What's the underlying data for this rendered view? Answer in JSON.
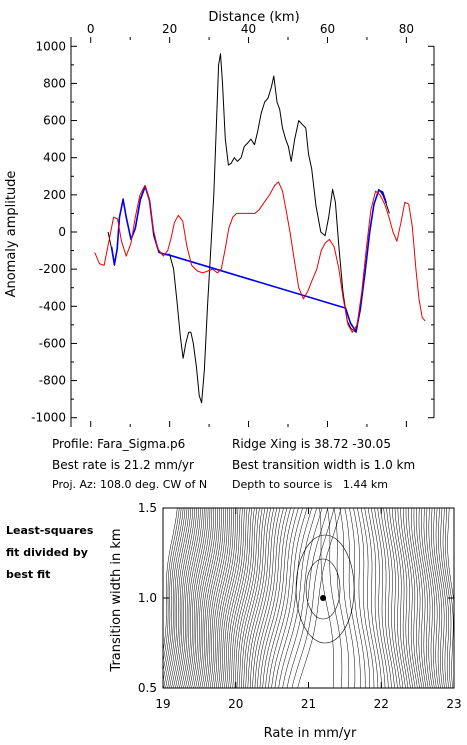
{
  "chart_data": [
    {
      "type": "line",
      "xlabel": "Distance (km)",
      "ylabel": "Anomaly amplitude",
      "xlim": [
        -5,
        87
      ],
      "ylim": [
        -1050,
        1050
      ],
      "x_ticks": [
        0,
        20,
        40,
        60,
        80
      ],
      "y_ticks": [
        -1000,
        -800,
        -600,
        -400,
        -200,
        0,
        200,
        400,
        600,
        800,
        1000
      ],
      "x_axis_position": "top",
      "series": [
        {
          "color": "#000000",
          "points": [
            [
              4.4,
              0
            ],
            [
              5.2,
              -80
            ],
            [
              6,
              -180
            ],
            [
              6.7,
              -90
            ],
            [
              7.3,
              80
            ],
            [
              8.2,
              180
            ],
            [
              9,
              80
            ],
            [
              10.2,
              -40
            ],
            [
              11.3,
              20
            ],
            [
              12.6,
              180
            ],
            [
              13.8,
              250
            ],
            [
              14.9,
              170
            ],
            [
              16,
              -20
            ],
            [
              17.3,
              -110
            ],
            [
              18.8,
              -120
            ],
            [
              20,
              -120
            ],
            [
              21,
              -200
            ],
            [
              21.9,
              -380
            ],
            [
              22.7,
              -560
            ],
            [
              23.4,
              -680
            ],
            [
              24.1,
              -600
            ],
            [
              24.8,
              -540
            ],
            [
              25.4,
              -540
            ],
            [
              26,
              -600
            ],
            [
              26.8,
              -730
            ],
            [
              27.5,
              -880
            ],
            [
              28.1,
              -920
            ],
            [
              28.8,
              -740
            ],
            [
              29.6,
              -400
            ],
            [
              30.4,
              -100
            ],
            [
              31.2,
              200
            ],
            [
              31.8,
              550
            ],
            [
              32.4,
              900
            ],
            [
              32.9,
              960
            ],
            [
              33.4,
              800
            ],
            [
              34.1,
              500
            ],
            [
              34.9,
              360
            ],
            [
              35.6,
              370
            ],
            [
              36.4,
              400
            ],
            [
              37.2,
              380
            ],
            [
              38.1,
              400
            ],
            [
              38.9,
              460
            ],
            [
              39.8,
              480
            ],
            [
              40.6,
              500
            ],
            [
              41.5,
              470
            ],
            [
              42.3,
              540
            ],
            [
              43.2,
              640
            ],
            [
              44.1,
              700
            ],
            [
              44.9,
              720
            ],
            [
              45.8,
              780
            ],
            [
              46.4,
              840
            ],
            [
              47.2,
              700
            ],
            [
              47.9,
              660
            ],
            [
              48.6,
              560
            ],
            [
              49.4,
              500
            ],
            [
              50.1,
              460
            ],
            [
              50.8,
              380
            ],
            [
              51.7,
              500
            ],
            [
              52.7,
              600
            ],
            [
              53.6,
              580
            ],
            [
              54.5,
              560
            ],
            [
              55.2,
              420
            ],
            [
              56,
              340
            ],
            [
              57.1,
              140
            ],
            [
              58.3,
              0
            ],
            [
              59.4,
              -20
            ],
            [
              60.3,
              80
            ],
            [
              61.3,
              230
            ],
            [
              62,
              160
            ],
            [
              62.9,
              -80
            ],
            [
              63.9,
              -320
            ],
            [
              65,
              -480
            ],
            [
              66,
              -520
            ],
            [
              67.3,
              -540
            ],
            [
              68.3,
              -420
            ],
            [
              69.5,
              -220
            ],
            [
              70.7,
              0
            ],
            [
              71.8,
              150
            ],
            [
              73,
              230
            ],
            [
              74,
              200
            ],
            [
              74.9,
              150
            ],
            [
              75.7,
              100
            ]
          ]
        },
        {
          "color": "#0000ee",
          "points": [
            [
              5.3,
              -80
            ],
            [
              6,
              -175
            ],
            [
              6.7,
              -90
            ],
            [
              7.3,
              80
            ],
            [
              8.2,
              175
            ],
            [
              9,
              80
            ],
            [
              10.2,
              -40
            ],
            [
              11.3,
              20
            ],
            [
              12.6,
              175
            ],
            [
              13.8,
              245
            ],
            [
              14.9,
              170
            ],
            [
              16,
              -20
            ],
            [
              17.3,
              -110
            ],
            [
              18.8,
              -120
            ],
            [
              20,
              -125
            ],
            [
              64.6,
              -410
            ],
            [
              65.8,
              -490
            ],
            [
              67.2,
              -535
            ],
            [
              68.3,
              -420
            ],
            [
              69.5,
              -220
            ],
            [
              70.7,
              0
            ],
            [
              71.8,
              150
            ],
            [
              73,
              225
            ],
            [
              74,
              215
            ],
            [
              74.9,
              155
            ]
          ]
        },
        {
          "color": "#ee0000",
          "points": [
            [
              1,
              -110
            ],
            [
              2.2,
              -170
            ],
            [
              3.4,
              -180
            ],
            [
              4.6,
              -50
            ],
            [
              5.8,
              80
            ],
            [
              6.8,
              70
            ],
            [
              7.8,
              -50
            ],
            [
              9,
              -130
            ],
            [
              10.2,
              -60
            ],
            [
              11.3,
              80
            ],
            [
              12.5,
              200
            ],
            [
              13.7,
              250
            ],
            [
              14.8,
              180
            ],
            [
              15.8,
              20
            ],
            [
              17,
              -90
            ],
            [
              18.4,
              -130
            ],
            [
              19.5,
              -100
            ],
            [
              20.3,
              -40
            ],
            [
              21.2,
              50
            ],
            [
              22.2,
              90
            ],
            [
              23.3,
              60
            ],
            [
              24.4,
              -80
            ],
            [
              25.6,
              -180
            ],
            [
              27,
              -210
            ],
            [
              28.4,
              -220
            ],
            [
              29.7,
              -210
            ],
            [
              30.9,
              -200
            ],
            [
              32.1,
              -220
            ],
            [
              33.1,
              -200
            ],
            [
              34,
              -100
            ],
            [
              35,
              20
            ],
            [
              36,
              80
            ],
            [
              37,
              100
            ],
            [
              38.2,
              100
            ],
            [
              39.4,
              100
            ],
            [
              40.5,
              100
            ],
            [
              41.6,
              100
            ],
            [
              42.7,
              120
            ],
            [
              44,
              160
            ],
            [
              45.3,
              200
            ],
            [
              46.6,
              250
            ],
            [
              47.6,
              270
            ],
            [
              48.6,
              220
            ],
            [
              49.5,
              120
            ],
            [
              50.5,
              0
            ],
            [
              51.6,
              -150
            ],
            [
              52.7,
              -300
            ],
            [
              53.9,
              -360
            ],
            [
              55,
              -320
            ],
            [
              56.1,
              -260
            ],
            [
              57.3,
              -200
            ],
            [
              58.4,
              -100
            ],
            [
              59.4,
              -60
            ],
            [
              60.5,
              -40
            ],
            [
              61.7,
              -80
            ],
            [
              62.9,
              -200
            ],
            [
              64,
              -360
            ],
            [
              65.2,
              -500
            ],
            [
              66.3,
              -540
            ],
            [
              67.5,
              -500
            ],
            [
              68.7,
              -320
            ],
            [
              69.9,
              -80
            ],
            [
              71,
              120
            ],
            [
              72.2,
              220
            ],
            [
              73.3,
              200
            ],
            [
              74.5,
              150
            ],
            [
              75.6,
              80
            ],
            [
              76.6,
              0
            ],
            [
              77.6,
              -50
            ],
            [
              78.6,
              50
            ],
            [
              79.6,
              160
            ],
            [
              80.6,
              150
            ],
            [
              81.5,
              30
            ],
            [
              82.4,
              -200
            ],
            [
              83.2,
              -360
            ],
            [
              84,
              -460
            ],
            [
              84.8,
              -480
            ]
          ]
        }
      ]
    },
    {
      "type": "contour",
      "xlabel": "Rate in mm/yr",
      "ylabel": "Transition width in km",
      "xlim": [
        19,
        23
      ],
      "ylim": [
        0.5,
        1.5
      ],
      "x_ticks": [
        19,
        20,
        21,
        22,
        23
      ],
      "y_ticks": [
        0.5,
        1.0,
        1.5
      ],
      "best_fit_point": [
        21.2,
        1.0
      ]
    }
  ],
  "info": {
    "profile": "Profile: Fara_Sigma.p6",
    "best_rate": "Best rate is 21.2 mm/yr",
    "proj_az": "Proj. Az: 108.0 deg. CW of N",
    "ridge_xing": "Ridge Xing is 38.72 -30.05",
    "best_width": "Best transition width is 1.0 km",
    "depth": "Depth to source is   1.44 km"
  },
  "side_label": {
    "line1": "Least-squares",
    "line2": "fit divided by",
    "line3": "best fit"
  }
}
